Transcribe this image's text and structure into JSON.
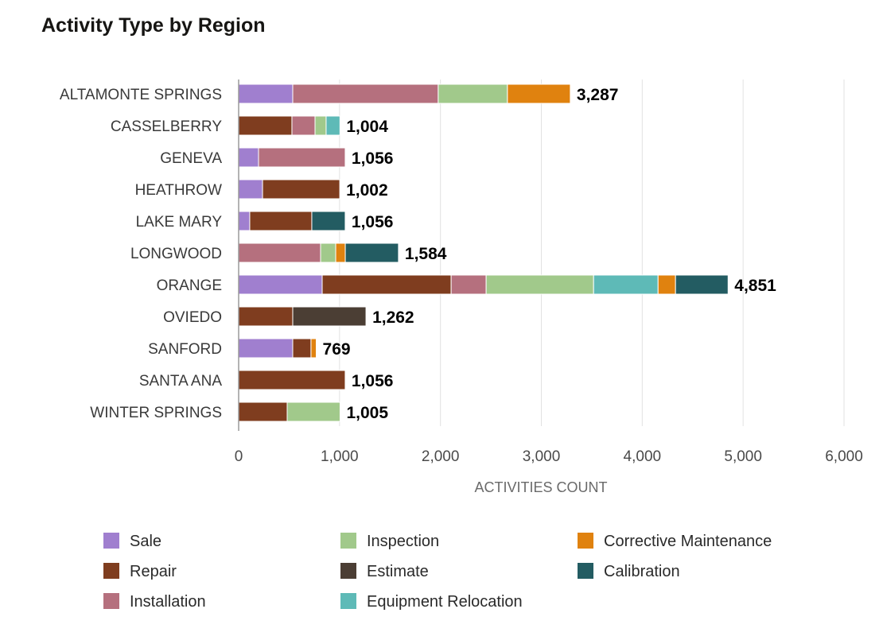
{
  "chart_data": {
    "type": "bar",
    "orientation": "horizontal",
    "stacked": true,
    "title": "Activity Type by Region",
    "xlabel": "ACTIVITIES COUNT",
    "ylabel": "",
    "xlim": [
      0,
      6000
    ],
    "xticks": [
      0,
      1000,
      2000,
      3000,
      4000,
      5000,
      6000
    ],
    "xtick_labels": [
      "0",
      "1,000",
      "2,000",
      "3,000",
      "4,000",
      "5,000",
      "6,000"
    ],
    "grid": true,
    "legend_position": "bottom",
    "categories": [
      "ALTAMONTE SPRINGS",
      "CASSELBERRY",
      "GENEVA",
      "HEATHROW",
      "LAKE MARY",
      "LONGWOOD",
      "ORANGE",
      "OVIEDO",
      "SANFORD",
      "SANTA ANA",
      "WINTER SPRINGS"
    ],
    "totals": [
      "3,287",
      "1,004",
      "1,056",
      "1,002",
      "1,056",
      "1,584",
      "4,851",
      "1,262",
      "769",
      "1,056",
      "1,005"
    ],
    "series": [
      {
        "name": "Sale",
        "color": "#a07fcf",
        "values": [
          536,
          0,
          197,
          237,
          110,
          0,
          828,
          0,
          536,
          0,
          0
        ]
      },
      {
        "name": "Repair",
        "color": "#7f3d1f",
        "values": [
          0,
          528,
          0,
          765,
          615,
          0,
          1278,
          536,
          181,
          1056,
          481
        ]
      },
      {
        "name": "Installation",
        "color": "#b5707e",
        "values": [
          1442,
          229,
          859,
          0,
          0,
          812,
          347,
          0,
          0,
          0,
          0
        ]
      },
      {
        "name": "Inspection",
        "color": "#a1c98b",
        "values": [
          686,
          110,
          0,
          0,
          0,
          150,
          1065,
          0,
          0,
          0,
          524
        ]
      },
      {
        "name": "Estimate",
        "color": "#4b3e34",
        "values": [
          0,
          0,
          0,
          0,
          0,
          0,
          0,
          726,
          0,
          0,
          0
        ]
      },
      {
        "name": "Equipment Relocation",
        "color": "#5ebab7",
        "values": [
          0,
          137,
          0,
          0,
          0,
          0,
          639,
          0,
          0,
          0,
          0
        ]
      },
      {
        "name": "Corrective Maintenance",
        "color": "#e0820f",
        "values": [
          623,
          0,
          0,
          0,
          0,
          95,
          173,
          0,
          52,
          0,
          0
        ]
      },
      {
        "name": "Calibration",
        "color": "#235c62",
        "values": [
          0,
          0,
          0,
          0,
          331,
          527,
          521,
          0,
          0,
          0,
          0
        ]
      }
    ],
    "legend_order": [
      "Sale",
      "Inspection",
      "Corrective Maintenance",
      "Repair",
      "Estimate",
      "Calibration",
      "Installation",
      "Equipment Relocation"
    ]
  }
}
